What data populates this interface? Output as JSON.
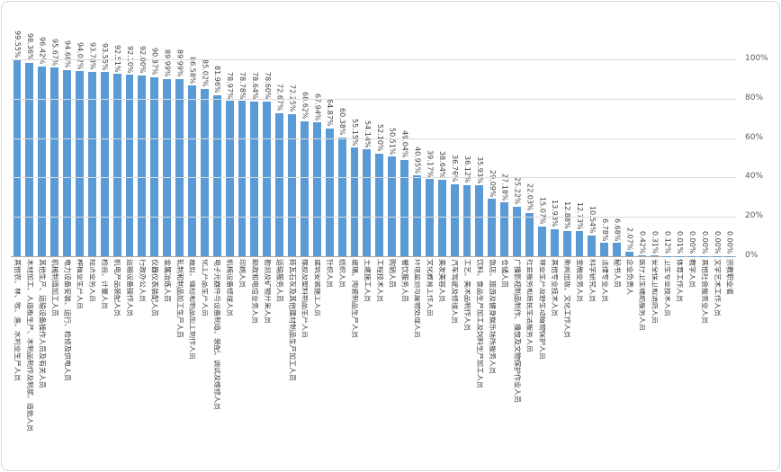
{
  "chart_data": {
    "type": "bar",
    "title": "",
    "xlabel": "",
    "ylabel": "",
    "ylim": [
      0,
      100
    ],
    "grid": true,
    "yaxis_position": "right",
    "y_ticks": [
      0,
      20,
      40,
      60,
      80,
      100
    ],
    "y_tick_labels": [
      "0%",
      "20%",
      "40%",
      "60%",
      "80%",
      "100%"
    ],
    "value_label_suffix": "%",
    "value_labels_rotated": true,
    "category_labels_rotated": true,
    "categories": [
      "其他农、林、牧、渔、水利业生产人员",
      "木材加工、人造板生产、木制品制作及制浆、造纸人员",
      "其他生产、运输设备操作人员及有关人员",
      "机械制造加工人员",
      "电力设备安装、运行、检修及供电人员",
      "种植业生产人员",
      "经济业务人员",
      "检验、计量人员",
      "机电产品装配人员",
      "运输设备操作人员",
      "行政办公人员",
      "仪器仪表装配人员",
      "金属冶炼人员",
      "轧制和制品加工生产人员",
      "裁剪、缝纫和制品加工制作人员",
      "化工产品生产人员",
      "电子元器件与设备制造、装配、调试及维修人员",
      "机械设备修理人员",
      "印刷人员",
      "邮政和电信业务人员",
      "勘测及矿物开采人员",
      "运输服务人员",
      "砖瓦石灰及其他建材制品生产加工人员",
      "橡胶及塑料制品生产人员",
      "建筑安装施工人员",
      "针织人员",
      "纺织人员",
      "玻璃、陶瓷制品生产人员",
      "土建施工人员",
      "工程技术人员",
      "购销人员",
      "餐饮服务人员",
      "环境监测与废物处理人员",
      "文化教育工作人员",
      "美发美容人员",
      "汽车驾驶及修理人员",
      "工艺、美术品制作人员",
      "饮料、食品生产加工及饲料生产加工人员",
      "饭店、旅游及健身娱乐场所服务人员",
      "仓储人员",
      "广播影视制品制作、播放及文物保护作业人员",
      "社会服务和居民生活服务人员",
      "林业生产及野生动植物保护人员",
      "其他专业技术人员",
      "新闻出版、文化工作人员",
      "金融业务人员",
      "科学研究人员",
      "法律专业人员",
      "秘书人员",
      "企业负责人",
      "医疗卫生辅助服务人员",
      "安全保卫和消防人员",
      "卫生专业技术人员",
      "体育工作人员",
      "教学人员",
      "其他社会服务业人员",
      "文学艺术工作人员",
      "宗教职业者"
    ],
    "values": [
      99.55,
      98.36,
      96.42,
      95.67,
      94.68,
      94.02,
      93.78,
      93.55,
      92.51,
      92.1,
      92.0,
      90.87,
      89.99,
      89.99,
      86.58,
      85.02,
      81.96,
      78.97,
      78.78,
      78.64,
      78.6,
      72.67,
      72.25,
      68.62,
      67.94,
      64.87,
      60.38,
      55.15,
      54.14,
      52.1,
      50.51,
      49.04,
      40.95,
      39.17,
      38.64,
      36.76,
      36.12,
      35.93,
      29.09,
      27.18,
      25.22,
      22.03,
      15.07,
      13.93,
      12.88,
      12.73,
      10.54,
      6.78,
      6.68,
      2.07,
      0.42,
      0.31,
      0.12,
      0.01,
      0.0,
      0.0,
      0.0,
      0.0
    ]
  },
  "colors": {
    "bar": "#5b9bd5",
    "gridline": "#dcdcdc",
    "axis_line": "#a6a6a6",
    "axis_text": "#595959",
    "label_text": "#404040",
    "frame_border": "#d9d9d9"
  }
}
